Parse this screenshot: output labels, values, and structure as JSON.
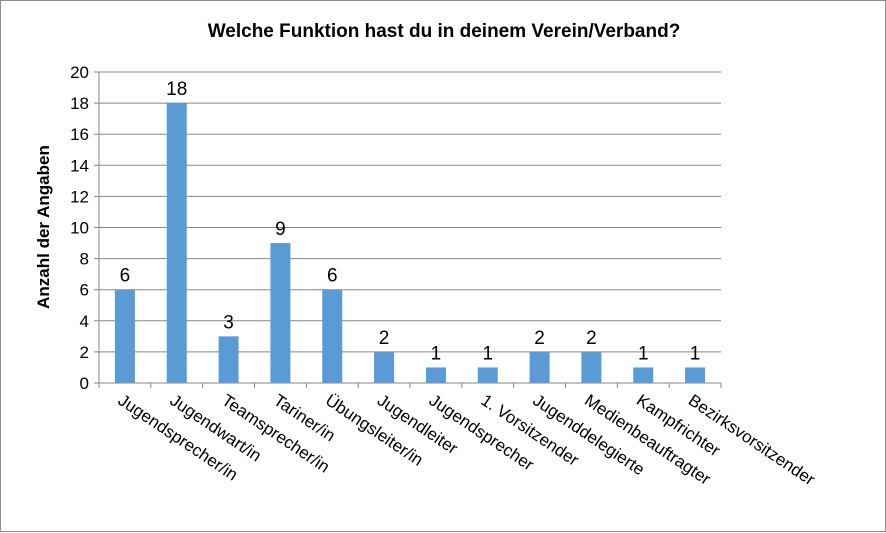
{
  "chart_data": {
    "type": "bar",
    "title": "Welche Funktion hast du in deinem Verein/Verband?",
    "xlabel": "",
    "ylabel": "Anzahl der Angaben",
    "ylim": [
      0,
      20
    ],
    "ytick_step": 2,
    "yticks": [
      "0",
      "2",
      "4",
      "6",
      "8",
      "10",
      "12",
      "14",
      "16",
      "18",
      "20"
    ],
    "grid": true,
    "legend": "none",
    "bar_color": "#5b9bd5",
    "categories": [
      "Jugendsprecher/in",
      "Jugendwart/in",
      "Teamsprecher/in",
      "Tariner/in",
      "Übungsleiter/in",
      "Jugendleiter",
      "Jugendsprecher",
      "1. Vorsitzender",
      "Jugenddelegierte",
      "Medienbeauftragter",
      "Kampfrichter",
      "Bezirksvorsitzender"
    ],
    "values": [
      6,
      18,
      3,
      9,
      6,
      2,
      1,
      1,
      2,
      2,
      1,
      1
    ]
  }
}
